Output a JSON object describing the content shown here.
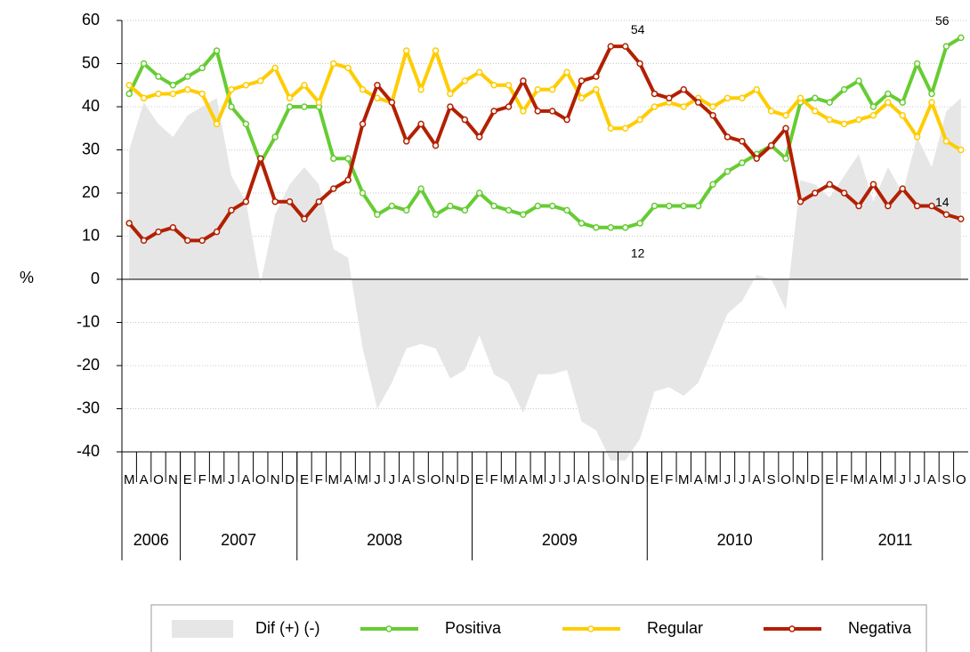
{
  "chart_data": {
    "type": "line",
    "y_label": "%",
    "ylim": [
      -40,
      60
    ],
    "yticks": [
      -40,
      -30,
      -20,
      -10,
      0,
      10,
      20,
      30,
      40,
      50,
      60
    ],
    "grid": true,
    "legend": "bottom",
    "categories": [
      "M",
      "A",
      "O",
      "N",
      "E",
      "F",
      "M",
      "J",
      "A",
      "O",
      "N",
      "D",
      "E",
      "F",
      "M",
      "A",
      "M",
      "J",
      "J",
      "A",
      "S",
      "O",
      "N",
      "D",
      "E",
      "F",
      "M",
      "A",
      "M",
      "J",
      "J",
      "A",
      "S",
      "O",
      "N",
      "D",
      "E",
      "F",
      "M",
      "A",
      "M",
      "J",
      "J",
      "A",
      "S",
      "O",
      "N",
      "D",
      "E",
      "F",
      "M",
      "A",
      "M",
      "J",
      "J",
      "A",
      "S",
      "O"
    ],
    "category_years": [
      "2006",
      "2006",
      "2006",
      "2006",
      "2007",
      "2007",
      "2007",
      "2007",
      "2007",
      "2007",
      "2007",
      "2007",
      "2008",
      "2008",
      "2008",
      "2008",
      "2008",
      "2008",
      "2008",
      "2008",
      "2008",
      "2008",
      "2008",
      "2008",
      "2009",
      "2009",
      "2009",
      "2009",
      "2009",
      "2009",
      "2009",
      "2009",
      "2009",
      "2009",
      "2009",
      "2009",
      "2010",
      "2010",
      "2010",
      "2010",
      "2010",
      "2010",
      "2010",
      "2010",
      "2010",
      "2010",
      "2010",
      "2010",
      "2011",
      "2011",
      "2011",
      "2011",
      "2011",
      "2011",
      "2011",
      "2011",
      "2011",
      "2011"
    ],
    "series": [
      {
        "name": "Dif (+) (-)",
        "type": "area",
        "color": "#e6e6e6",
        "values": [
          30,
          41,
          36,
          33,
          38,
          40,
          42,
          24,
          18,
          -1,
          15,
          22,
          26,
          22,
          7,
          5,
          -16,
          -30,
          -24,
          -16,
          -15,
          -16,
          -23,
          -21,
          -13,
          -22,
          -24,
          -31,
          -22,
          -22,
          -21,
          -33,
          -35,
          -42,
          -42,
          -37,
          -26,
          -25,
          -27,
          -24,
          -16,
          -8,
          -5,
          1,
          0,
          -7,
          23,
          22,
          19,
          24,
          29,
          18,
          26,
          20,
          33,
          26,
          39,
          42
        ]
      },
      {
        "name": "Positiva",
        "type": "line",
        "color": "#66cc33",
        "values": [
          43,
          50,
          47,
          45,
          47,
          49,
          53,
          40,
          36,
          27,
          33,
          40,
          40,
          40,
          28,
          28,
          20,
          15,
          17,
          16,
          21,
          15,
          17,
          16,
          20,
          17,
          16,
          15,
          17,
          17,
          16,
          13,
          12,
          12,
          12,
          13,
          17,
          17,
          17,
          17,
          22,
          25,
          27,
          29,
          31,
          28,
          41,
          42,
          41,
          44,
          46,
          40,
          43,
          41,
          50,
          43,
          54,
          56
        ],
        "value_labels": [
          null,
          null,
          null,
          null,
          null,
          null,
          null,
          null,
          null,
          null,
          null,
          null,
          null,
          null,
          null,
          null,
          null,
          null,
          null,
          null,
          null,
          null,
          null,
          null,
          null,
          null,
          null,
          null,
          null,
          null,
          null,
          null,
          null,
          null,
          "12",
          null,
          null,
          null,
          null,
          null,
          null,
          null,
          null,
          null,
          null,
          null,
          null,
          null,
          null,
          null,
          null,
          null,
          null,
          null,
          null,
          null,
          null,
          "56"
        ]
      },
      {
        "name": "Regular",
        "type": "line",
        "color": "#ffcc00",
        "values": [
          45,
          42,
          43,
          43,
          44,
          43,
          36,
          44,
          45,
          46,
          49,
          42,
          45,
          41,
          50,
          49,
          44,
          42,
          41,
          53,
          44,
          53,
          43,
          46,
          48,
          45,
          45,
          39,
          44,
          44,
          48,
          42,
          44,
          35,
          35,
          37,
          40,
          41,
          40,
          42,
          40,
          42,
          42,
          44,
          39,
          38,
          42,
          39,
          37,
          36,
          37,
          38,
          41,
          38,
          33,
          41,
          32,
          30
        ]
      },
      {
        "name": "Negativa",
        "type": "line",
        "color": "#b22000",
        "values": [
          13,
          9,
          11,
          12,
          9,
          9,
          11,
          16,
          18,
          28,
          18,
          18,
          14,
          18,
          21,
          23,
          36,
          45,
          41,
          32,
          36,
          31,
          40,
          37,
          33,
          39,
          40,
          46,
          39,
          39,
          37,
          46,
          47,
          54,
          54,
          50,
          43,
          42,
          44,
          41,
          38,
          33,
          32,
          28,
          31,
          35,
          18,
          20,
          22,
          20,
          17,
          22,
          17,
          21,
          17,
          17,
          15,
          14
        ],
        "value_labels": [
          null,
          null,
          null,
          null,
          null,
          null,
          null,
          null,
          null,
          null,
          null,
          null,
          null,
          null,
          null,
          null,
          null,
          null,
          null,
          null,
          null,
          null,
          null,
          null,
          null,
          null,
          null,
          null,
          null,
          null,
          null,
          null,
          null,
          null,
          "54",
          null,
          null,
          null,
          null,
          null,
          null,
          null,
          null,
          null,
          null,
          null,
          null,
          null,
          null,
          null,
          null,
          null,
          null,
          null,
          null,
          null,
          null,
          "14"
        ]
      }
    ]
  }
}
